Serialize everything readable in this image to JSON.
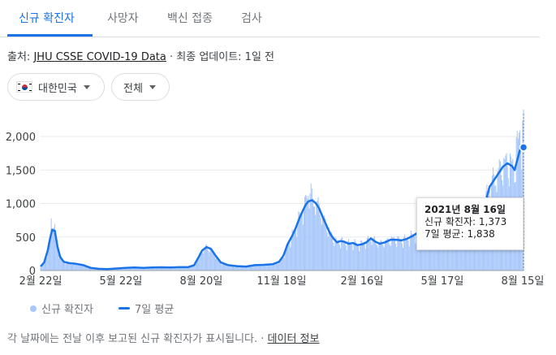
{
  "tabs": [
    {
      "label": "신규 확진자",
      "active": true
    },
    {
      "label": "사망자",
      "active": false
    },
    {
      "label": "백신 접종",
      "active": false
    },
    {
      "label": "검사",
      "active": false
    }
  ],
  "source": {
    "prefix": "출처:",
    "link": "JHU CSSE COVID-19 Data",
    "suffix": " · 최종 업데이트: 1일 전"
  },
  "filters": {
    "region": "대한민국",
    "period": "전체"
  },
  "colors": {
    "accent": "#1a73e8",
    "bar": "#a8c7fa"
  },
  "legend": {
    "daily": "신규 확진자",
    "avg": "7일 평균"
  },
  "tooltip": {
    "date": "2021년 8월 16일",
    "daily_label": "신규 확진자:",
    "daily_value": "1,373",
    "avg_label": "7일 평균:",
    "avg_value": "1,838"
  },
  "footer": {
    "text": "각 날짜에는 전날 이후 보고된 신규 확진자가 표시됩니다.",
    "sep": " · ",
    "link": "데이터 정보"
  },
  "chart_data": {
    "type": "bar",
    "ylim": [
      0,
      2200
    ],
    "yticks": [
      0,
      500,
      1000,
      1500,
      2000
    ],
    "ytick_labels": [
      "0",
      "500",
      "1,000",
      "1,500",
      "2,000"
    ],
    "xtick_labels": [
      "2월 22일",
      "5월 22일",
      "8월 20일",
      "11월 18일",
      "2월 16일",
      "5월 17일",
      "8월 15일"
    ],
    "xtick_positions": [
      0,
      90,
      180,
      270,
      360,
      450,
      540
    ],
    "x_total_days": 541,
    "avg_series": {
      "name": "7일 평균",
      "points": [
        [
          0,
          60
        ],
        [
          4,
          120
        ],
        [
          8,
          300
        ],
        [
          11,
          500
        ],
        [
          13,
          610
        ],
        [
          16,
          590
        ],
        [
          19,
          350
        ],
        [
          22,
          200
        ],
        [
          26,
          130
        ],
        [
          32,
          110
        ],
        [
          40,
          100
        ],
        [
          48,
          80
        ],
        [
          56,
          40
        ],
        [
          65,
          25
        ],
        [
          75,
          20
        ],
        [
          85,
          30
        ],
        [
          95,
          40
        ],
        [
          105,
          45
        ],
        [
          115,
          40
        ],
        [
          125,
          45
        ],
        [
          135,
          48
        ],
        [
          145,
          45
        ],
        [
          155,
          50
        ],
        [
          165,
          50
        ],
        [
          172,
          80
        ],
        [
          177,
          200
        ],
        [
          181,
          300
        ],
        [
          186,
          350
        ],
        [
          191,
          320
        ],
        [
          196,
          220
        ],
        [
          202,
          120
        ],
        [
          210,
          80
        ],
        [
          220,
          65
        ],
        [
          230,
          60
        ],
        [
          240,
          80
        ],
        [
          250,
          85
        ],
        [
          260,
          95
        ],
        [
          267,
          130
        ],
        [
          272,
          220
        ],
        [
          277,
          400
        ],
        [
          282,
          520
        ],
        [
          286,
          640
        ],
        [
          290,
          780
        ],
        [
          294,
          900
        ],
        [
          297,
          980
        ],
        [
          300,
          1030
        ],
        [
          304,
          1050
        ],
        [
          308,
          1010
        ],
        [
          312,
          930
        ],
        [
          316,
          800
        ],
        [
          320,
          680
        ],
        [
          324,
          560
        ],
        [
          328,
          480
        ],
        [
          332,
          420
        ],
        [
          336,
          440
        ],
        [
          340,
          430
        ],
        [
          345,
          400
        ],
        [
          350,
          410
        ],
        [
          355,
          380
        ],
        [
          360,
          390
        ],
        [
          365,
          420
        ],
        [
          370,
          480
        ],
        [
          375,
          430
        ],
        [
          380,
          400
        ],
        [
          386,
          420
        ],
        [
          392,
          460
        ],
        [
          398,
          460
        ],
        [
          404,
          450
        ],
        [
          410,
          470
        ],
        [
          416,
          510
        ],
        [
          422,
          560
        ],
        [
          428,
          610
        ],
        [
          434,
          650
        ],
        [
          440,
          640
        ],
        [
          446,
          630
        ],
        [
          452,
          620
        ],
        [
          458,
          600
        ],
        [
          464,
          560
        ],
        [
          470,
          540
        ],
        [
          476,
          560
        ],
        [
          482,
          540
        ],
        [
          488,
          580
        ],
        [
          493,
          700
        ],
        [
          498,
          1000
        ],
        [
          503,
          1250
        ],
        [
          508,
          1350
        ],
        [
          513,
          1450
        ],
        [
          518,
          1550
        ],
        [
          523,
          1600
        ],
        [
          528,
          1560
        ],
        [
          531,
          1500
        ],
        [
          534,
          1650
        ],
        [
          537,
          1800
        ],
        [
          541,
          1838
        ]
      ]
    },
    "highlight": {
      "x": 541,
      "y": 1838
    }
  }
}
